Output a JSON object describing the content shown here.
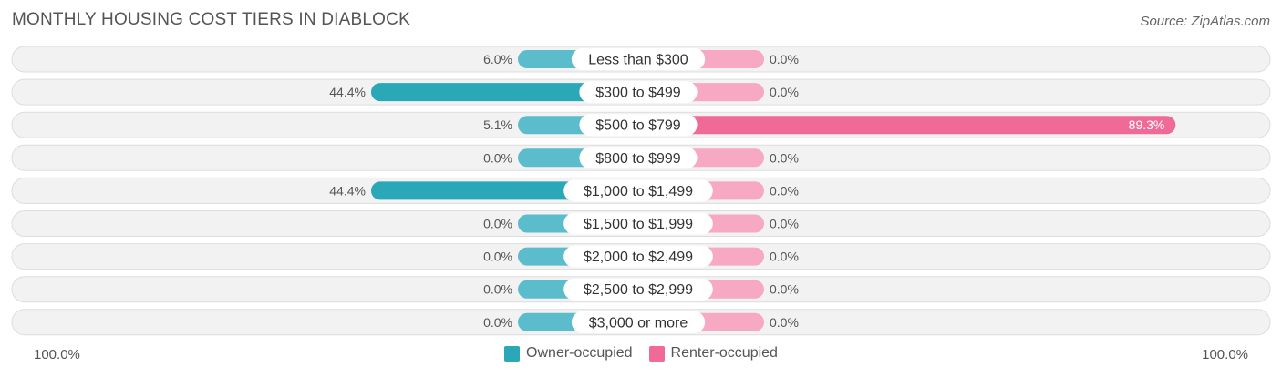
{
  "header": {
    "title": "MONTHLY HOUSING COST TIERS IN DIABLOCK",
    "source": "Source: ZipAtlas.com"
  },
  "axis": {
    "left_label": "100.0%",
    "right_label": "100.0%"
  },
  "colors": {
    "owner": "#5bbccb",
    "owner_strong": "#2aa8b8",
    "renter": "#f7a8c3",
    "renter_strong": "#f06a97",
    "row_bg": "#f2f2f2",
    "row_border": "#dddddd"
  },
  "chart_data": {
    "type": "bar",
    "orientation": "horizontal-diverging",
    "title": "MONTHLY HOUSING COST TIERS IN DIABLOCK",
    "categories": [
      "Less than $300",
      "$300 to $499",
      "$500 to $799",
      "$800 to $999",
      "$1,000 to $1,499",
      "$1,500 to $1,999",
      "$2,000 to $2,499",
      "$2,500 to $2,999",
      "$3,000 or more"
    ],
    "series": [
      {
        "name": "Owner-occupied",
        "values": [
          6.0,
          44.4,
          5.1,
          0.0,
          44.4,
          0.0,
          0.0,
          0.0,
          0.0
        ],
        "labels": [
          "6.0%",
          "44.4%",
          "5.1%",
          "0.0%",
          "44.4%",
          "0.0%",
          "0.0%",
          "0.0%",
          "0.0%"
        ]
      },
      {
        "name": "Renter-occupied",
        "values": [
          0.0,
          0.0,
          89.3,
          0.0,
          0.0,
          0.0,
          0.0,
          0.0,
          0.0
        ],
        "labels": [
          "0.0%",
          "0.0%",
          "89.3%",
          "0.0%",
          "0.0%",
          "0.0%",
          "0.0%",
          "0.0%",
          "0.0%"
        ]
      }
    ],
    "xlim": [
      -100,
      100
    ],
    "legend": "bottom-center"
  }
}
